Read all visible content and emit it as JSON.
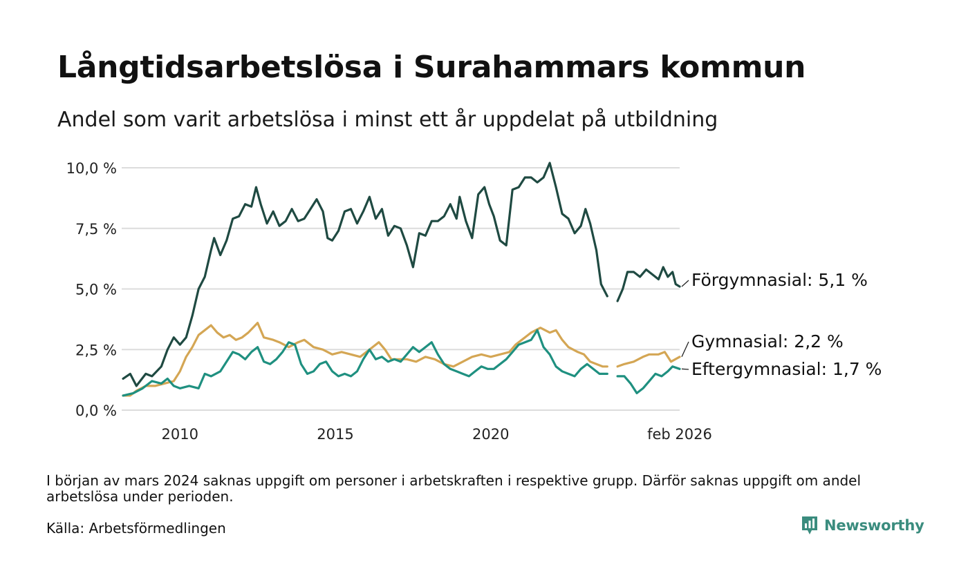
{
  "title": "Långtidsarbetslösa i Surahammars kommun",
  "subtitle": "Andel som varit arbetslösa i minst ett år uppdelat på utbildning",
  "note": "I början av mars 2024 saknas uppgift om personer i arbetskraften i respektive grupp. Därför saknas uppgift om andel arbetslösa under perioden.",
  "source": "Källa: Arbetsförmedlingen",
  "brand": {
    "name": "Newsworthy",
    "icon": "newsworthy-logo-icon"
  },
  "chart_data": {
    "type": "line",
    "title": "Långtidsarbetslösa i Surahammars kommun",
    "xlabel": "",
    "ylabel": "",
    "ylim": [
      0,
      10
    ],
    "xlim": [
      2008.17,
      2026.08
    ],
    "yticks": [
      {
        "value": 0,
        "label": "0,0 %"
      },
      {
        "value": 2.5,
        "label": "2,5 %"
      },
      {
        "value": 5,
        "label": "5,0 %"
      },
      {
        "value": 7.5,
        "label": "7,5 %"
      },
      {
        "value": 10,
        "label": "10,0 %"
      }
    ],
    "xticks": [
      {
        "value": 2010,
        "label": "2010"
      },
      {
        "value": 2015,
        "label": "2015"
      },
      {
        "value": 2020,
        "label": "2020"
      },
      {
        "value": 2026.08,
        "label": "feb 2026"
      }
    ],
    "gap": {
      "from": 2023.75,
      "to": 2024.08
    },
    "series": [
      {
        "name": "Förgymnasial",
        "label": "Förgymnasial: 5,1 %",
        "color": "#1f4a42",
        "points": [
          [
            2008.17,
            1.3
          ],
          [
            2008.4,
            1.5
          ],
          [
            2008.6,
            1.0
          ],
          [
            2008.9,
            1.5
          ],
          [
            2009.1,
            1.4
          ],
          [
            2009.4,
            1.8
          ],
          [
            2009.6,
            2.5
          ],
          [
            2009.8,
            3.0
          ],
          [
            2010.0,
            2.7
          ],
          [
            2010.2,
            3.0
          ],
          [
            2010.4,
            3.9
          ],
          [
            2010.6,
            5.0
          ],
          [
            2010.8,
            5.5
          ],
          [
            2011.0,
            6.6
          ],
          [
            2011.1,
            7.1
          ],
          [
            2011.3,
            6.4
          ],
          [
            2011.5,
            7.0
          ],
          [
            2011.7,
            7.9
          ],
          [
            2011.9,
            8.0
          ],
          [
            2012.1,
            8.5
          ],
          [
            2012.3,
            8.4
          ],
          [
            2012.45,
            9.2
          ],
          [
            2012.6,
            8.5
          ],
          [
            2012.8,
            7.7
          ],
          [
            2013.0,
            8.2
          ],
          [
            2013.2,
            7.6
          ],
          [
            2013.4,
            7.8
          ],
          [
            2013.6,
            8.3
          ],
          [
            2013.8,
            7.8
          ],
          [
            2014.0,
            7.9
          ],
          [
            2014.2,
            8.3
          ],
          [
            2014.4,
            8.7
          ],
          [
            2014.6,
            8.2
          ],
          [
            2014.75,
            7.1
          ],
          [
            2014.9,
            7.0
          ],
          [
            2015.1,
            7.4
          ],
          [
            2015.3,
            8.2
          ],
          [
            2015.5,
            8.3
          ],
          [
            2015.7,
            7.7
          ],
          [
            2015.9,
            8.2
          ],
          [
            2016.1,
            8.8
          ],
          [
            2016.3,
            7.9
          ],
          [
            2016.5,
            8.3
          ],
          [
            2016.7,
            7.2
          ],
          [
            2016.9,
            7.6
          ],
          [
            2017.1,
            7.5
          ],
          [
            2017.3,
            6.8
          ],
          [
            2017.5,
            5.9
          ],
          [
            2017.7,
            7.3
          ],
          [
            2017.9,
            7.2
          ],
          [
            2018.1,
            7.8
          ],
          [
            2018.3,
            7.8
          ],
          [
            2018.5,
            8.0
          ],
          [
            2018.7,
            8.5
          ],
          [
            2018.9,
            7.9
          ],
          [
            2019.0,
            8.8
          ],
          [
            2019.2,
            7.8
          ],
          [
            2019.4,
            7.1
          ],
          [
            2019.6,
            8.9
          ],
          [
            2019.8,
            9.2
          ],
          [
            2019.95,
            8.5
          ],
          [
            2020.1,
            8.0
          ],
          [
            2020.3,
            7.0
          ],
          [
            2020.5,
            6.8
          ],
          [
            2020.7,
            9.1
          ],
          [
            2020.9,
            9.2
          ],
          [
            2021.1,
            9.6
          ],
          [
            2021.3,
            9.6
          ],
          [
            2021.5,
            9.4
          ],
          [
            2021.7,
            9.6
          ],
          [
            2021.9,
            10.2
          ],
          [
            2022.1,
            9.2
          ],
          [
            2022.3,
            8.1
          ],
          [
            2022.5,
            7.9
          ],
          [
            2022.7,
            7.3
          ],
          [
            2022.9,
            7.6
          ],
          [
            2023.05,
            8.3
          ],
          [
            2023.2,
            7.7
          ],
          [
            2023.4,
            6.6
          ],
          [
            2023.55,
            5.2
          ],
          [
            2023.75,
            4.7
          ],
          [
            2024.08,
            4.5
          ],
          [
            2024.25,
            5.0
          ],
          [
            2024.4,
            5.7
          ],
          [
            2024.6,
            5.7
          ],
          [
            2024.8,
            5.5
          ],
          [
            2025.0,
            5.8
          ],
          [
            2025.2,
            5.6
          ],
          [
            2025.4,
            5.4
          ],
          [
            2025.55,
            5.9
          ],
          [
            2025.7,
            5.5
          ],
          [
            2025.85,
            5.7
          ],
          [
            2025.95,
            5.2
          ],
          [
            2026.08,
            5.1
          ]
        ]
      },
      {
        "name": "Gymnasial",
        "label": "Gymnasial: 2,2 %",
        "color": "#d4a654",
        "points": [
          [
            2008.17,
            0.6
          ],
          [
            2008.4,
            0.6
          ],
          [
            2008.6,
            0.8
          ],
          [
            2008.9,
            1.0
          ],
          [
            2009.2,
            1.0
          ],
          [
            2009.5,
            1.1
          ],
          [
            2009.8,
            1.2
          ],
          [
            2010.0,
            1.6
          ],
          [
            2010.2,
            2.2
          ],
          [
            2010.4,
            2.6
          ],
          [
            2010.6,
            3.1
          ],
          [
            2010.8,
            3.3
          ],
          [
            2011.0,
            3.5
          ],
          [
            2011.2,
            3.2
          ],
          [
            2011.4,
            3.0
          ],
          [
            2011.6,
            3.1
          ],
          [
            2011.8,
            2.9
          ],
          [
            2012.0,
            3.0
          ],
          [
            2012.2,
            3.2
          ],
          [
            2012.5,
            3.6
          ],
          [
            2012.7,
            3.0
          ],
          [
            2013.0,
            2.9
          ],
          [
            2013.2,
            2.8
          ],
          [
            2013.5,
            2.6
          ],
          [
            2013.8,
            2.8
          ],
          [
            2014.0,
            2.9
          ],
          [
            2014.3,
            2.6
          ],
          [
            2014.6,
            2.5
          ],
          [
            2014.9,
            2.3
          ],
          [
            2015.2,
            2.4
          ],
          [
            2015.5,
            2.3
          ],
          [
            2015.8,
            2.2
          ],
          [
            2016.0,
            2.4
          ],
          [
            2016.2,
            2.6
          ],
          [
            2016.4,
            2.8
          ],
          [
            2016.6,
            2.5
          ],
          [
            2016.8,
            2.1
          ],
          [
            2017.0,
            2.1
          ],
          [
            2017.3,
            2.1
          ],
          [
            2017.6,
            2.0
          ],
          [
            2017.9,
            2.2
          ],
          [
            2018.2,
            2.1
          ],
          [
            2018.5,
            1.9
          ],
          [
            2018.8,
            1.8
          ],
          [
            2019.1,
            2.0
          ],
          [
            2019.4,
            2.2
          ],
          [
            2019.7,
            2.3
          ],
          [
            2020.0,
            2.2
          ],
          [
            2020.3,
            2.3
          ],
          [
            2020.6,
            2.4
          ],
          [
            2020.8,
            2.7
          ],
          [
            2021.0,
            2.9
          ],
          [
            2021.3,
            3.2
          ],
          [
            2021.6,
            3.4
          ],
          [
            2021.9,
            3.2
          ],
          [
            2022.1,
            3.3
          ],
          [
            2022.3,
            2.9
          ],
          [
            2022.5,
            2.6
          ],
          [
            2022.8,
            2.4
          ],
          [
            2023.0,
            2.3
          ],
          [
            2023.2,
            2.0
          ],
          [
            2023.4,
            1.9
          ],
          [
            2023.6,
            1.8
          ],
          [
            2023.75,
            1.8
          ],
          [
            2024.08,
            1.8
          ],
          [
            2024.3,
            1.9
          ],
          [
            2024.6,
            2.0
          ],
          [
            2024.9,
            2.2
          ],
          [
            2025.1,
            2.3
          ],
          [
            2025.4,
            2.3
          ],
          [
            2025.6,
            2.4
          ],
          [
            2025.8,
            2.0
          ],
          [
            2026.08,
            2.2
          ]
        ]
      },
      {
        "name": "Eftergymnasial",
        "label": "Eftergymnasial: 1,7 %",
        "color": "#1f9080",
        "points": [
          [
            2008.17,
            0.6
          ],
          [
            2008.5,
            0.7
          ],
          [
            2008.8,
            0.9
          ],
          [
            2009.1,
            1.2
          ],
          [
            2009.4,
            1.1
          ],
          [
            2009.6,
            1.3
          ],
          [
            2009.8,
            1.0
          ],
          [
            2010.0,
            0.9
          ],
          [
            2010.3,
            1.0
          ],
          [
            2010.6,
            0.9
          ],
          [
            2010.8,
            1.5
          ],
          [
            2011.0,
            1.4
          ],
          [
            2011.3,
            1.6
          ],
          [
            2011.5,
            2.0
          ],
          [
            2011.7,
            2.4
          ],
          [
            2011.9,
            2.3
          ],
          [
            2012.1,
            2.1
          ],
          [
            2012.3,
            2.4
          ],
          [
            2012.5,
            2.6
          ],
          [
            2012.7,
            2.0
          ],
          [
            2012.9,
            1.9
          ],
          [
            2013.1,
            2.1
          ],
          [
            2013.3,
            2.4
          ],
          [
            2013.5,
            2.8
          ],
          [
            2013.7,
            2.7
          ],
          [
            2013.9,
            1.9
          ],
          [
            2014.1,
            1.5
          ],
          [
            2014.3,
            1.6
          ],
          [
            2014.5,
            1.9
          ],
          [
            2014.7,
            2.0
          ],
          [
            2014.9,
            1.6
          ],
          [
            2015.1,
            1.4
          ],
          [
            2015.3,
            1.5
          ],
          [
            2015.5,
            1.4
          ],
          [
            2015.7,
            1.6
          ],
          [
            2015.9,
            2.1
          ],
          [
            2016.1,
            2.5
          ],
          [
            2016.3,
            2.1
          ],
          [
            2016.5,
            2.2
          ],
          [
            2016.7,
            2.0
          ],
          [
            2016.9,
            2.1
          ],
          [
            2017.1,
            2.0
          ],
          [
            2017.3,
            2.3
          ],
          [
            2017.5,
            2.6
          ],
          [
            2017.7,
            2.4
          ],
          [
            2017.9,
            2.6
          ],
          [
            2018.1,
            2.8
          ],
          [
            2018.3,
            2.3
          ],
          [
            2018.5,
            1.9
          ],
          [
            2018.7,
            1.7
          ],
          [
            2018.9,
            1.6
          ],
          [
            2019.1,
            1.5
          ],
          [
            2019.3,
            1.4
          ],
          [
            2019.5,
            1.6
          ],
          [
            2019.7,
            1.8
          ],
          [
            2019.9,
            1.7
          ],
          [
            2020.1,
            1.7
          ],
          [
            2020.3,
            1.9
          ],
          [
            2020.5,
            2.1
          ],
          [
            2020.7,
            2.4
          ],
          [
            2020.9,
            2.7
          ],
          [
            2021.1,
            2.8
          ],
          [
            2021.3,
            2.9
          ],
          [
            2021.5,
            3.3
          ],
          [
            2021.7,
            2.6
          ],
          [
            2021.9,
            2.3
          ],
          [
            2022.1,
            1.8
          ],
          [
            2022.3,
            1.6
          ],
          [
            2022.5,
            1.5
          ],
          [
            2022.7,
            1.4
          ],
          [
            2022.9,
            1.7
          ],
          [
            2023.1,
            1.9
          ],
          [
            2023.3,
            1.7
          ],
          [
            2023.5,
            1.5
          ],
          [
            2023.75,
            1.5
          ],
          [
            2024.08,
            1.4
          ],
          [
            2024.3,
            1.4
          ],
          [
            2024.5,
            1.1
          ],
          [
            2024.7,
            0.7
          ],
          [
            2024.9,
            0.9
          ],
          [
            2025.1,
            1.2
          ],
          [
            2025.3,
            1.5
          ],
          [
            2025.5,
            1.4
          ],
          [
            2025.7,
            1.6
          ],
          [
            2025.85,
            1.8
          ],
          [
            2026.08,
            1.7
          ]
        ]
      }
    ]
  }
}
